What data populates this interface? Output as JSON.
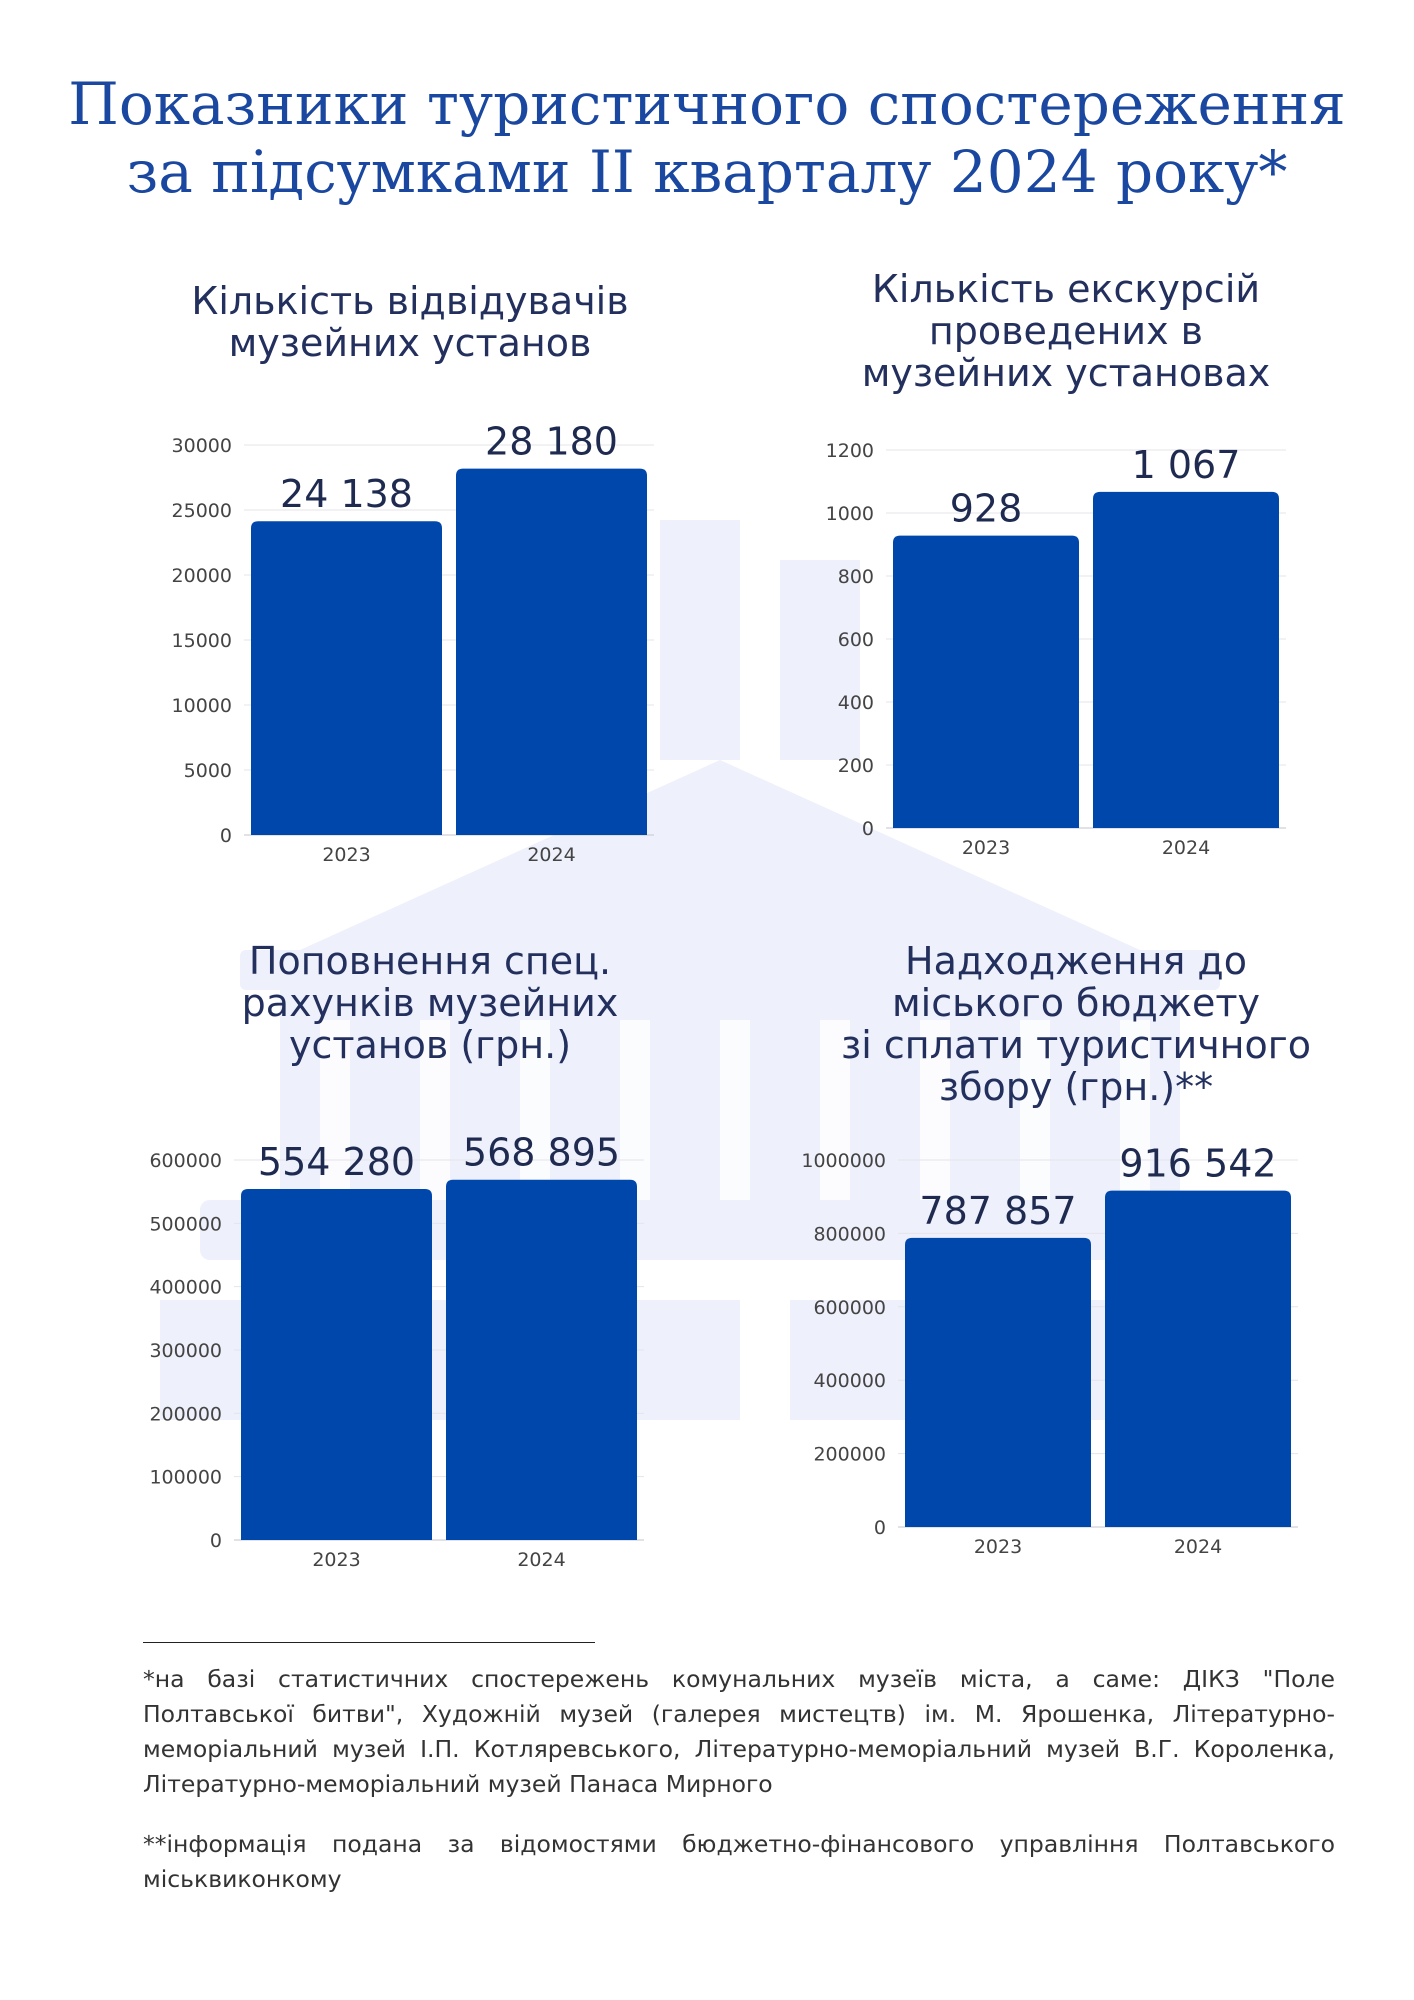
{
  "page": {
    "title_lines": [
      "Показники туристичного спостереження",
      "за підсумками ІІ кварталу 2024 року*"
    ],
    "colors": {
      "title": "#1a47a0",
      "bar": "#0047ab",
      "watermark": "#eef0fb"
    }
  },
  "chart_data": [
    {
      "type": "bar",
      "title_lines": [
        "Кількість відвідувачів",
        "музейних установ"
      ],
      "categories": [
        "2023",
        "2024"
      ],
      "values": [
        24138,
        28180
      ],
      "value_labels": [
        "24 138",
        "28 180"
      ],
      "ylim": [
        0,
        30000
      ],
      "yticks": [
        0,
        5000,
        10000,
        15000,
        20000,
        25000,
        30000
      ],
      "ytick_labels": [
        "0",
        "5000",
        "10000",
        "15000",
        "20000",
        "25000",
        "30000"
      ],
      "grid": true,
      "legend": "none"
    },
    {
      "type": "bar",
      "title_lines": [
        "Кількість екскурсій",
        "проведених в",
        "музейних установах"
      ],
      "categories": [
        "2023",
        "2024"
      ],
      "values": [
        928,
        1067
      ],
      "value_labels": [
        "928",
        "1 067"
      ],
      "ylim": [
        0,
        1200
      ],
      "yticks": [
        0,
        200,
        400,
        600,
        800,
        1000,
        1200
      ],
      "ytick_labels": [
        "0",
        "200",
        "400",
        "600",
        "800",
        "1000",
        "1200"
      ],
      "grid": true,
      "legend": "none"
    },
    {
      "type": "bar",
      "title_lines": [
        "Поповнення спец.",
        "рахунків музейних",
        "установ (грн.)"
      ],
      "categories": [
        "2023",
        "2024"
      ],
      "values": [
        554280,
        568895
      ],
      "value_labels": [
        "554 280",
        "568 895"
      ],
      "ylim": [
        0,
        600000
      ],
      "yticks": [
        0,
        100000,
        200000,
        300000,
        400000,
        500000,
        600000
      ],
      "ytick_labels": [
        "0",
        "100000",
        "200000",
        "300000",
        "400000",
        "500000",
        "600000"
      ],
      "grid": true,
      "legend": "none"
    },
    {
      "type": "bar",
      "title_lines": [
        "Надходження до",
        "міського бюджету",
        "зі сплати туристичного",
        "збору (грн.)**"
      ],
      "categories": [
        "2023",
        "2024"
      ],
      "values": [
        787857,
        916542
      ],
      "value_labels": [
        "787 857",
        "916 542"
      ],
      "ylim": [
        0,
        1000000
      ],
      "yticks": [
        0,
        200000,
        400000,
        600000,
        800000,
        1000000
      ],
      "ytick_labels": [
        "0",
        "200000",
        "400000",
        "600000",
        "800000",
        "1000000"
      ],
      "grid": true,
      "legend": "none"
    }
  ],
  "footnotes": {
    "note1": "*на базі статистичних спостережень комунальних музеїв міста, а саме: ДІКЗ \"Поле Полтавської битви\", Художній музей (галерея мистецтв) ім. М. Ярошенка, Літературно-меморіальний музей І.П. Котляревського, Літературно-меморіальний музей В.Г. Короленка, Літературно-меморіальний музей Панаса Мирного",
    "note2": "**інформація подана за відомостями бюджетно-фінансового управління Полтавського міськвиконкому"
  }
}
